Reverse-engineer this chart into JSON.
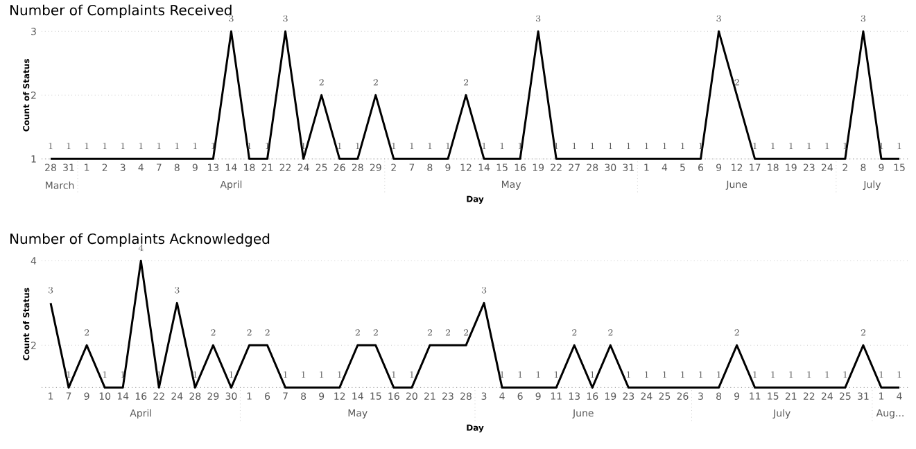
{
  "chart_data": [
    {
      "type": "line",
      "title": "Number of Complaints Received",
      "xlabel": "Day",
      "ylabel": "Count of Status",
      "categories": [
        "28",
        "31",
        "1",
        "2",
        "3",
        "4",
        "7",
        "8",
        "9",
        "13",
        "14",
        "18",
        "21",
        "22",
        "24",
        "25",
        "26",
        "28",
        "29",
        "2",
        "7",
        "8",
        "9",
        "12",
        "14",
        "15",
        "16",
        "19",
        "22",
        "27",
        "28",
        "30",
        "31",
        "1",
        "4",
        "5",
        "6",
        "9",
        "12",
        "17",
        "18",
        "19",
        "23",
        "24",
        "2",
        "8",
        "9",
        "15"
      ],
      "values": [
        1,
        1,
        1,
        1,
        1,
        1,
        1,
        1,
        1,
        1,
        3,
        1,
        1,
        3,
        1,
        2,
        1,
        1,
        2,
        1,
        1,
        1,
        1,
        2,
        1,
        1,
        1,
        3,
        1,
        1,
        1,
        1,
        1,
        1,
        1,
        1,
        1,
        3,
        2,
        1,
        1,
        1,
        1,
        1,
        1,
        3,
        1,
        1
      ],
      "color": "#000000",
      "ylim": [
        1,
        3
      ],
      "yticks": [
        1,
        2,
        3
      ],
      "grid": "y",
      "data_labels": true,
      "marker": "none",
      "line_style": "solid",
      "annotations": [
        "March",
        "April",
        "May",
        "June",
        "July"
      ]
    },
    {
      "type": "line",
      "title": "Number of Complaints Acknowledged",
      "xlabel": "Day",
      "ylabel": "Count of Status",
      "categories": [
        "1",
        "7",
        "9",
        "10",
        "14",
        "16",
        "22",
        "24",
        "28",
        "29",
        "30",
        "1",
        "6",
        "7",
        "8",
        "9",
        "12",
        "14",
        "15",
        "16",
        "20",
        "21",
        "23",
        "28",
        "3",
        "4",
        "6",
        "9",
        "11",
        "13",
        "16",
        "19",
        "23",
        "24",
        "25",
        "26",
        "3",
        "8",
        "9",
        "11",
        "15",
        "21",
        "22",
        "24",
        "25",
        "31",
        "1",
        "4"
      ],
      "values": [
        3,
        1,
        2,
        1,
        1,
        4,
        1,
        3,
        1,
        2,
        1,
        2,
        2,
        1,
        1,
        1,
        1,
        2,
        2,
        1,
        1,
        2,
        2,
        2,
        3,
        1,
        1,
        1,
        1,
        2,
        1,
        2,
        1,
        1,
        1,
        1,
        1,
        1,
        2,
        1,
        1,
        1,
        1,
        1,
        1,
        2,
        1,
        1
      ],
      "color": "#000000",
      "ylim": [
        1,
        4
      ],
      "yticks": [
        2,
        4
      ],
      "grid": "y",
      "data_labels": true,
      "marker": "none",
      "line_style": "solid",
      "annotations": [
        "April",
        "May",
        "June",
        "July",
        "Aug..."
      ]
    }
  ]
}
